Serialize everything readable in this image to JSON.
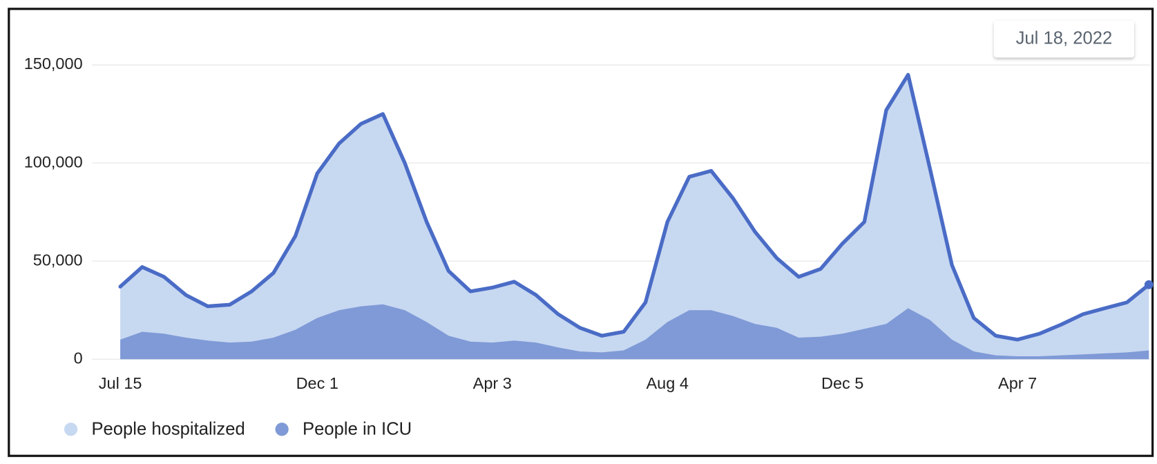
{
  "chart_data": {
    "type": "area",
    "categories": [
      "Jul 15",
      null,
      null,
      null,
      null,
      null,
      null,
      null,
      null,
      "Dec 1",
      null,
      null,
      null,
      null,
      null,
      null,
      null,
      "Apr 3",
      null,
      null,
      null,
      null,
      null,
      null,
      null,
      "Aug 4",
      null,
      null,
      null,
      null,
      null,
      null,
      null,
      "Dec 5",
      null,
      null,
      null,
      null,
      null,
      null,
      null,
      "Apr 7",
      null,
      null,
      null,
      null,
      null,
      null
    ],
    "series": [
      {
        "name": "People hospitalized",
        "color": "#c7d8f1",
        "line_color": "#4a6cc6",
        "values": [
          37000,
          47000,
          42000,
          32700,
          27000,
          27800,
          34600,
          44000,
          62800,
          94700,
          110000,
          120000,
          125000,
          100000,
          70000,
          45000,
          34600,
          36500,
          39500,
          32700,
          23000,
          16000,
          12000,
          14000,
          29000,
          70000,
          93000,
          96000,
          82000,
          65000,
          51500,
          42000,
          46000,
          59000,
          70000,
          127000,
          145000,
          97000,
          48000,
          21000,
          12000,
          10000,
          13000,
          17700,
          23000,
          26000,
          29000,
          38000
        ]
      },
      {
        "name": "People in ICU",
        "color": "#7f9ad6",
        "values": [
          10000,
          14000,
          13000,
          11000,
          9500,
          8500,
          9000,
          11000,
          15000,
          21000,
          25000,
          27000,
          28000,
          25000,
          19000,
          12000,
          9000,
          8500,
          9500,
          8500,
          6000,
          4000,
          3500,
          4500,
          10000,
          19000,
          25000,
          25000,
          22000,
          18000,
          16000,
          11000,
          11500,
          13000,
          15500,
          18000,
          26000,
          20000,
          10000,
          4000,
          2000,
          1500,
          1500,
          2000,
          2500,
          3000,
          3500,
          4500
        ]
      }
    ],
    "ylim": [
      0,
      165000
    ],
    "yticks": [
      0,
      {
        "value": 50000,
        "label": "50,000"
      },
      {
        "value": 100000,
        "label": "100,000"
      },
      {
        "value": 150000,
        "label": "150,000"
      }
    ],
    "grid": true,
    "legend": "bottom-left",
    "annotation": "Jul 18, 2022"
  }
}
